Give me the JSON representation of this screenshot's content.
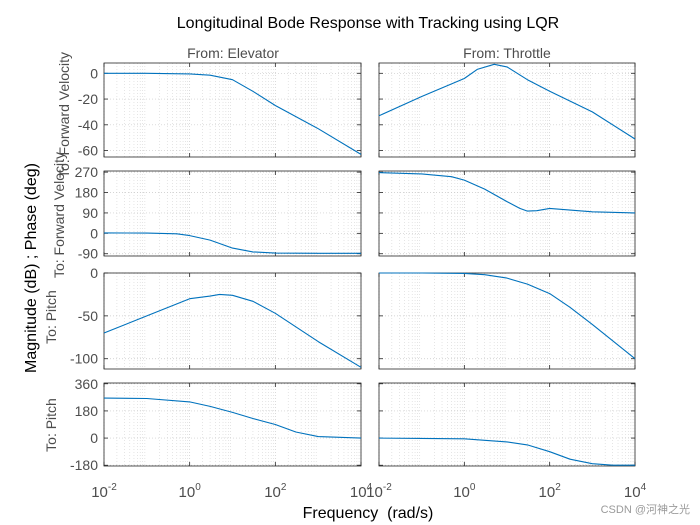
{
  "chart_data": {
    "type": "line",
    "title": "Longitudinal Bode Response with Tracking using LQR",
    "xlabel": "Frequency  (rad/s)",
    "ylabel": "Magnitude (dB) ; Phase (deg)",
    "xscale": "log",
    "xlim": [
      0.01,
      10000
    ],
    "xticks": [
      {
        "value": 0.01,
        "base": "10",
        "exp": "-2"
      },
      {
        "value": 1,
        "base": "10",
        "exp": "0"
      },
      {
        "value": 100,
        "base": "10",
        "exp": "2"
      },
      {
        "value": 10000,
        "base": "10",
        "exp": "4"
      }
    ],
    "grid": true,
    "line_color": "#0072bd",
    "columns": [
      "From: Elevator",
      "From: Throttle"
    ],
    "row_labels": [
      "To: Forward Velocity",
      "To: Forward Velocity",
      "To: Pitch",
      "To: Pitch"
    ],
    "rows": [
      {
        "kind": "magnitude",
        "ylim": [
          -65,
          8
        ],
        "yticks": [
          0,
          -20,
          -40,
          -60
        ]
      },
      {
        "kind": "phase",
        "ylim": [
          -100,
          275
        ],
        "yticks": [
          270,
          180,
          90,
          0,
          -90
        ]
      },
      {
        "kind": "magnitude",
        "ylim": [
          -112,
          0
        ],
        "yticks": [
          0,
          -50,
          -100
        ]
      },
      {
        "kind": "phase",
        "ylim": [
          -185,
          365
        ],
        "yticks": [
          360,
          180,
          0,
          -180
        ]
      }
    ],
    "series": [
      {
        "name": "Elevator to Forward Velocity (magnitude, dB)",
        "row": 0,
        "col": 0,
        "x": [
          0.01,
          0.1,
          1,
          3,
          10,
          30,
          100,
          1000,
          10000
        ],
        "y": [
          0,
          0,
          -0.5,
          -1.5,
          -5,
          -14,
          -25,
          -43,
          -63
        ]
      },
      {
        "name": "Throttle to Forward Velocity (magnitude, dB)",
        "row": 0,
        "col": 1,
        "x": [
          0.01,
          0.1,
          1,
          2,
          5,
          10,
          30,
          100,
          1000,
          10000
        ],
        "y": [
          -33,
          -18,
          -4,
          3,
          7,
          5,
          -5,
          -14,
          -30,
          -51
        ]
      },
      {
        "name": "Elevator to Forward Velocity (phase, deg)",
        "row": 1,
        "col": 0,
        "x": [
          0.01,
          0.1,
          0.5,
          1,
          3,
          10,
          30,
          100,
          1000,
          10000
        ],
        "y": [
          2,
          1,
          -2,
          -10,
          -30,
          -65,
          -82,
          -87,
          -88,
          -88
        ]
      },
      {
        "name": "Throttle to Forward Velocity (phase, deg)",
        "row": 1,
        "col": 1,
        "x": [
          0.01,
          0.1,
          0.5,
          1,
          3,
          10,
          20,
          30,
          50,
          100,
          1000,
          10000
        ],
        "y": [
          268,
          262,
          250,
          235,
          195,
          140,
          110,
          98,
          100,
          110,
          95,
          90
        ]
      },
      {
        "name": "Elevator to Pitch (magnitude, dB)",
        "row": 2,
        "col": 0,
        "x": [
          0.01,
          0.1,
          1,
          3,
          5,
          10,
          30,
          100,
          1000,
          10000
        ],
        "y": [
          -70,
          -50,
          -30,
          -27,
          -25,
          -26,
          -33,
          -47,
          -80,
          -110
        ]
      },
      {
        "name": "Throttle to Pitch (magnitude, dB)",
        "row": 2,
        "col": 1,
        "x": [
          0.01,
          0.1,
          1,
          3,
          10,
          30,
          100,
          300,
          1000,
          10000
        ],
        "y": [
          0,
          0,
          -0.5,
          -2,
          -6,
          -13,
          -24,
          -40,
          -60,
          -100
        ]
      },
      {
        "name": "Elevator to Pitch (phase, deg)",
        "row": 3,
        "col": 0,
        "x": [
          0.01,
          0.1,
          1,
          3,
          10,
          30,
          100,
          300,
          1000,
          10000
        ],
        "y": [
          265,
          262,
          240,
          210,
          170,
          130,
          90,
          40,
          10,
          0
        ]
      },
      {
        "name": "Throttle to Pitch (phase, deg)",
        "row": 3,
        "col": 1,
        "x": [
          0.01,
          0.1,
          1,
          3,
          10,
          30,
          100,
          300,
          1000,
          3000,
          10000
        ],
        "y": [
          0,
          -2,
          -5,
          -15,
          -25,
          -45,
          -90,
          -140,
          -170,
          -180,
          -180
        ]
      }
    ]
  },
  "watermark": "CSDN @河神之光"
}
